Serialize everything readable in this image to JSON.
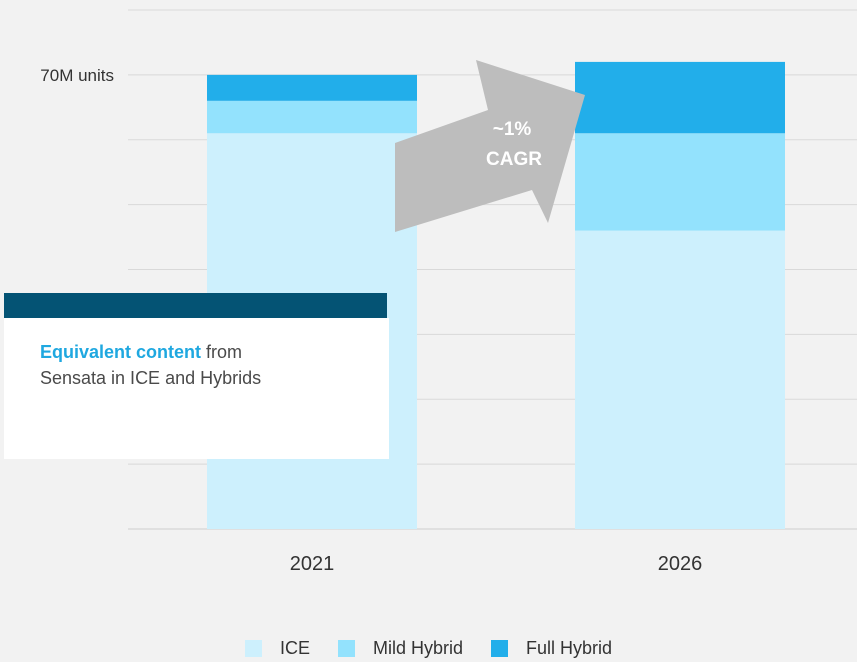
{
  "chart_data": {
    "type": "bar",
    "stacked": true,
    "categories": [
      "2021",
      "2026"
    ],
    "series": [
      {
        "name": "ICE",
        "color": "#cdf0fd",
        "values": [
          61,
          46
        ]
      },
      {
        "name": "Mild Hybrid",
        "color": "#93e2fd",
        "values": [
          5,
          15
        ]
      },
      {
        "name": "Full Hybrid",
        "color": "#22aeea",
        "values": [
          4,
          11
        ]
      }
    ],
    "y_tick_label": "70M units",
    "y_tick_value": 70,
    "ylim": [
      0,
      80
    ],
    "grid": true,
    "legend_position": "bottom",
    "annotation": {
      "line1": "~1%",
      "line2": "CAGR"
    }
  },
  "callout": {
    "emphasis": "Equivalent content",
    "text_part1": " from",
    "text_part2": "Sensata in ICE and Hybrids"
  },
  "colors": {
    "background": "#f2f2f2",
    "grid": "#d9d9d9",
    "arrow": "#bdbdbd",
    "callout_bar": "#045374",
    "callout_emphasis": "#1fa8e0"
  }
}
